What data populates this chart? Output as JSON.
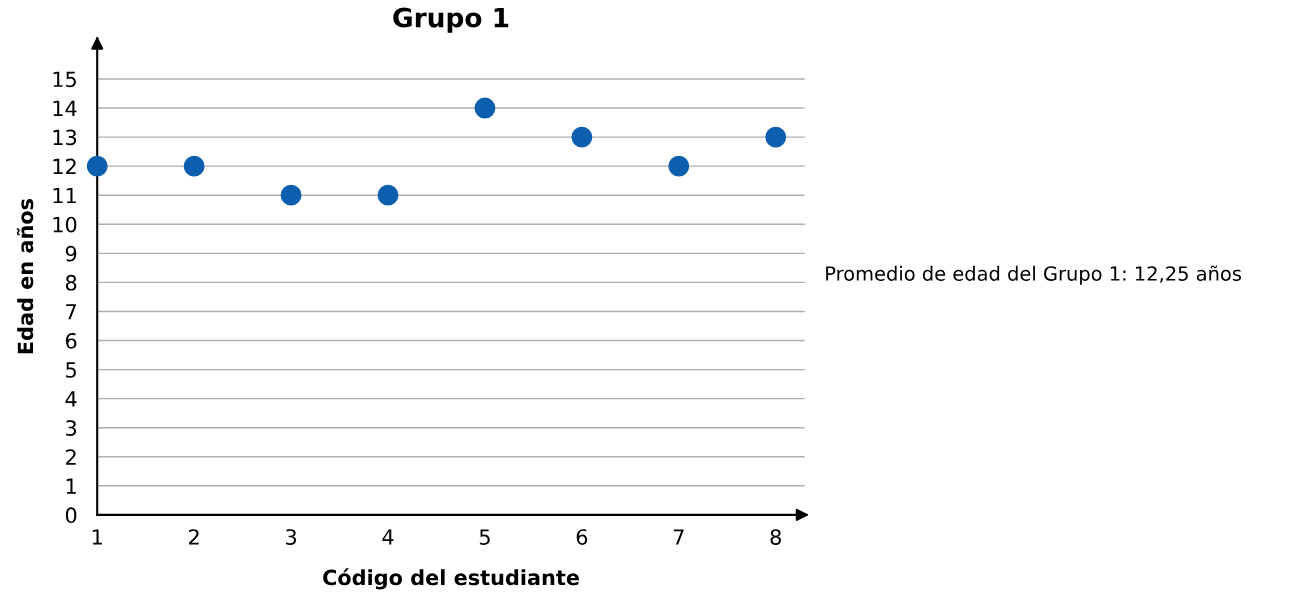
{
  "chart_data": {
    "type": "scatter",
    "title": "Grupo 1",
    "xlabel": "Código del estudiante",
    "ylabel": "Edad en años",
    "x": [
      1,
      2,
      3,
      4,
      5,
      6,
      7,
      8
    ],
    "series": [
      {
        "color": "#0b5fae",
        "values": [
          12,
          12,
          11,
          11,
          14,
          13,
          12,
          13
        ]
      }
    ],
    "xlim": [
      1,
      8.3
    ],
    "xticks": [
      1,
      2,
      3,
      4,
      5,
      6,
      7,
      8
    ],
    "ylim": [
      0,
      16.4
    ],
    "yticks": [
      0,
      1,
      2,
      3,
      4,
      5,
      6,
      7,
      8,
      9,
      10,
      11,
      12,
      13,
      14,
      15
    ],
    "grid": "y",
    "legend": false,
    "marker": "circle",
    "annotations": [
      "Promedio de edad del Grupo 1: 12,25 años"
    ]
  }
}
